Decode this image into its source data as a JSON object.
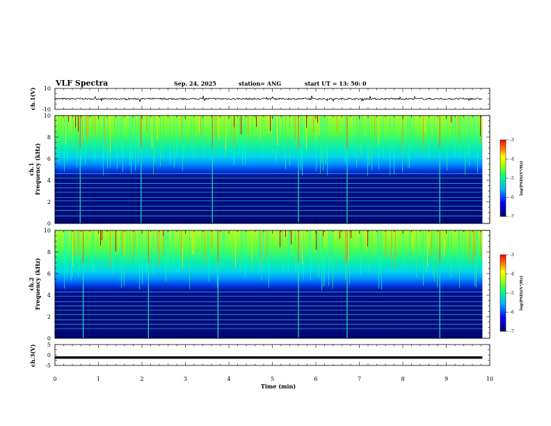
{
  "header": {
    "title": "VLF Spectra",
    "date": "Sep. 24, 2025",
    "station": "station= ANG",
    "start": "start  UT =   13: 50: 0"
  },
  "chart_data": [
    {
      "type": "line",
      "id": "ch1-waveform",
      "ylabel": "ch.1(V)",
      "ylim": [
        -10,
        10
      ],
      "y_ticks": [
        "10",
        "-10"
      ],
      "baseline": 0,
      "description_values": "noisy waveform centered near 0 V"
    },
    {
      "type": "heatmap",
      "id": "ch1-spectrogram",
      "ylabel_lines": [
        "ch.1",
        "Frequency (kHz)"
      ],
      "ylim": [
        0,
        10
      ],
      "y_ticks": [
        "0",
        "2",
        "4",
        "6",
        "8",
        "10"
      ],
      "colorbar": {
        "label": "log(PSD)(V²/Hz)",
        "ticks": [
          "-3",
          "-4",
          "-5",
          "-6",
          "-7"
        ],
        "range": [
          -7,
          -3
        ]
      },
      "lines_khz": [
        0.7,
        1.2,
        1.6,
        2.1,
        2.4,
        2.9,
        3.3,
        3.7,
        4.2,
        4.6
      ],
      "spike_min": [
        0.58,
        1.98,
        3.62,
        5.6,
        6.72,
        8.85
      ]
    },
    {
      "type": "heatmap",
      "id": "ch2-spectrogram",
      "ylabel_lines": [
        "ch.2",
        "Frequency (kHz)"
      ],
      "ylim": [
        0,
        10
      ],
      "y_ticks": [
        "0",
        "2",
        "4",
        "6",
        "8",
        "10"
      ],
      "colorbar": {
        "label": "log(PSD)(V²/Hz)",
        "ticks": [
          "-3",
          "-4",
          "-5",
          "-6",
          "-7"
        ],
        "range": [
          -7,
          -3
        ]
      },
      "lines_khz": [
        0.9,
        1.3,
        1.7,
        2.2,
        2.6,
        3.0,
        3.4,
        3.9,
        4.3
      ],
      "spike_min": [
        0.65,
        2.15,
        3.75,
        5.6,
        6.72,
        8.85
      ]
    },
    {
      "type": "line",
      "id": "ch3-waveform",
      "ylabel": "ch.3(V)",
      "ylim": [
        -5,
        5
      ],
      "y_ticks": [
        "5",
        "0",
        "-5"
      ],
      "baseline": -1.2,
      "description_values": "flat thick line near -1.2 V"
    }
  ],
  "xaxis": {
    "label": "Time (min)",
    "range": [
      0,
      10
    ],
    "ticks": [
      "0",
      "1",
      "2",
      "3",
      "4",
      "5",
      "6",
      "7",
      "8",
      "9",
      "10"
    ],
    "data_end_min": 9.83
  }
}
